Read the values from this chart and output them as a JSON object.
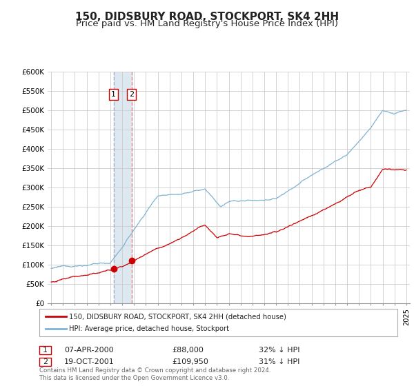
{
  "title": "150, DIDSBURY ROAD, STOCKPORT, SK4 2HH",
  "subtitle": "Price paid vs. HM Land Registry's House Price Index (HPI)",
  "red_label": "150, DIDSBURY ROAD, STOCKPORT, SK4 2HH (detached house)",
  "blue_label": "HPI: Average price, detached house, Stockport",
  "ylim": [
    0,
    600000
  ],
  "yticks": [
    0,
    50000,
    100000,
    150000,
    200000,
    250000,
    300000,
    350000,
    400000,
    450000,
    500000,
    550000,
    600000
  ],
  "ytick_labels": [
    "£0",
    "£50K",
    "£100K",
    "£150K",
    "£200K",
    "£250K",
    "£300K",
    "£350K",
    "£400K",
    "£450K",
    "£500K",
    "£550K",
    "£600K"
  ],
  "xlim_start": 1994.7,
  "xlim_end": 2025.3,
  "xticks": [
    1995,
    1996,
    1997,
    1998,
    1999,
    2000,
    2001,
    2002,
    2003,
    2004,
    2005,
    2006,
    2007,
    2008,
    2009,
    2010,
    2011,
    2012,
    2013,
    2014,
    2015,
    2016,
    2017,
    2018,
    2019,
    2020,
    2021,
    2022,
    2023,
    2024,
    2025
  ],
  "transaction1_date": 2000.27,
  "transaction1_price": 88000,
  "transaction1_label": "1",
  "transaction1_info": "07-APR-2000",
  "transaction1_amount": "£88,000",
  "transaction1_hpi": "32% ↓ HPI",
  "transaction2_date": 2001.8,
  "transaction2_price": 109950,
  "transaction2_label": "2",
  "transaction2_info": "19-OCT-2001",
  "transaction2_amount": "£109,950",
  "transaction2_hpi": "31% ↓ HPI",
  "shade_start": 2000.27,
  "shade_end": 2001.8,
  "red_color": "#cc0000",
  "blue_color": "#7fb3d3",
  "vline1_color": "#aaaacc",
  "vline2_color": "#dd8888",
  "shade_color": "#dde8f0",
  "background_color": "#ffffff",
  "grid_color": "#cccccc",
  "footer_text": "Contains HM Land Registry data © Crown copyright and database right 2024.\nThis data is licensed under the Open Government Licence v3.0.",
  "title_fontsize": 11,
  "subtitle_fontsize": 9.5
}
